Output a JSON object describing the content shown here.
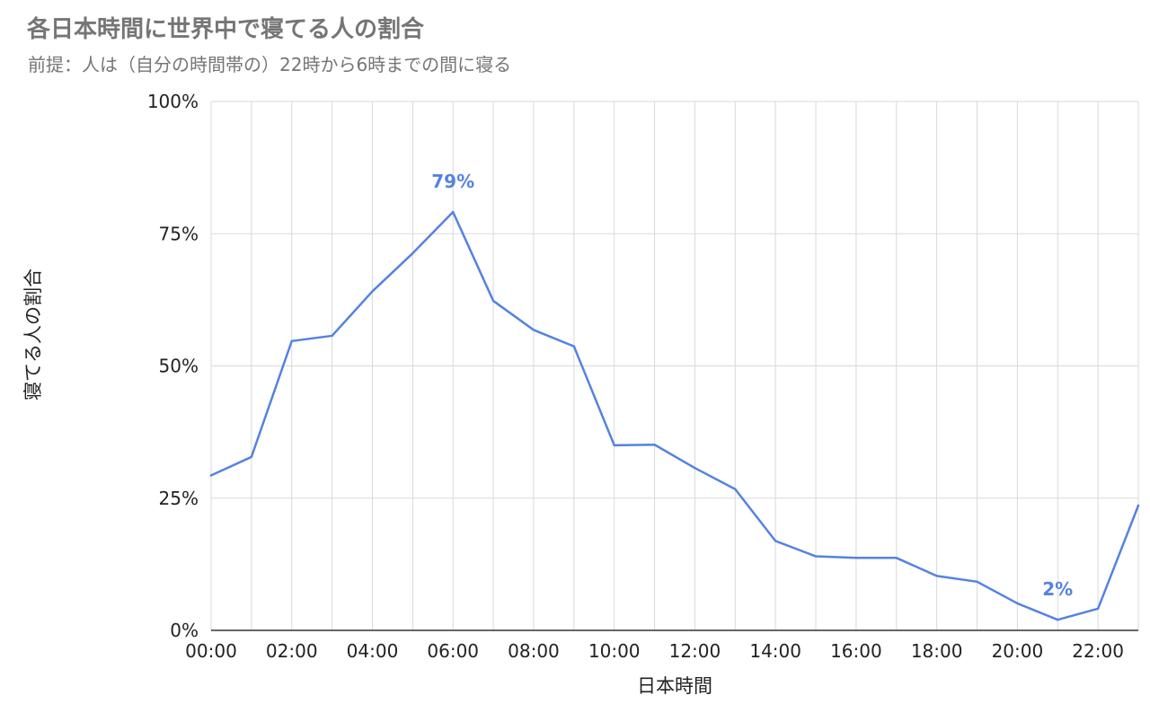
{
  "chart_data": {
    "type": "line",
    "title": "各日本時間に世界中で寝てる人の割合",
    "subtitle": "前提：人は（自分の時間帯の）22時から6時までの間に寝る",
    "xlabel": "日本時間",
    "ylabel": "寝てる人の割合",
    "x": [
      "00:00",
      "01:00",
      "02:00",
      "03:00",
      "04:00",
      "05:00",
      "06:00",
      "07:00",
      "08:00",
      "09:00",
      "10:00",
      "11:00",
      "12:00",
      "13:00",
      "14:00",
      "15:00",
      "16:00",
      "17:00",
      "18:00",
      "19:00",
      "20:00",
      "21:00",
      "22:00",
      "23:00"
    ],
    "x_tick_labels": [
      "00:00",
      "02:00",
      "04:00",
      "06:00",
      "08:00",
      "10:00",
      "12:00",
      "14:00",
      "16:00",
      "18:00",
      "20:00",
      "22:00"
    ],
    "series": [
      {
        "values": [
          29.3,
          32.8,
          54.7,
          55.7,
          64.1,
          71.3,
          79.1,
          62.3,
          56.8,
          53.7,
          35.0,
          35.1,
          30.7,
          26.7,
          16.9,
          14.0,
          13.7,
          13.7,
          10.3,
          9.2,
          5.1,
          2.0,
          4.1,
          23.6
        ],
        "color": "#5483e0"
      }
    ],
    "data_labels": [
      {
        "index": 6,
        "text": "79%"
      },
      {
        "index": 21,
        "text": "2%"
      }
    ],
    "y_tick_labels": [
      "0%",
      "25%",
      "50%",
      "75%",
      "100%"
    ],
    "ylim": [
      0,
      100
    ],
    "grid": true,
    "legend": "none"
  }
}
